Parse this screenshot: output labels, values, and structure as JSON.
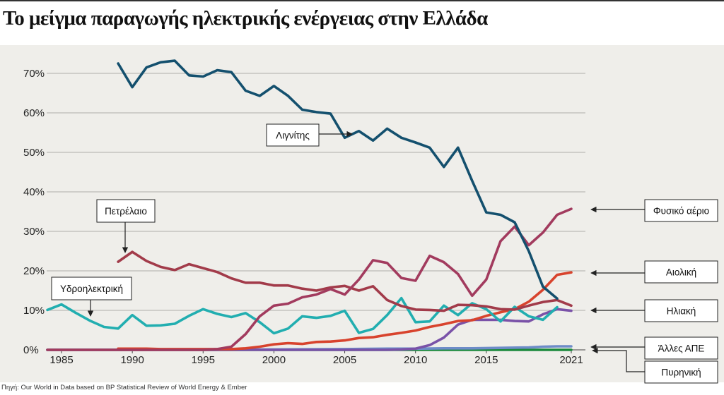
{
  "title": "Το μείγμα παραγωγής ηλεκτρικής ενέργειας στην Ελλάδα",
  "source": "Πηγή: Our World in Data based on BP Statistical Review of World Energy & Ember",
  "chart_data": {
    "type": "line",
    "title": "Το μείγμα παραγωγής ηλεκτρικής ενέργειας στην Ελλάδα",
    "xlabel": "",
    "ylabel": "",
    "xlim": [
      1984,
      2022
    ],
    "ylim": [
      0,
      70
    ],
    "grid": true,
    "x_ticks": [
      1985,
      1990,
      1995,
      2000,
      2005,
      2010,
      2015,
      2021
    ],
    "y_ticks": [
      0,
      10,
      20,
      30,
      40,
      50,
      60,
      70
    ],
    "y_tick_labels": [
      "0%",
      "10%",
      "20%",
      "30%",
      "40%",
      "50%",
      "60%",
      "70%"
    ],
    "series": [
      {
        "name": "Λιγνίτης",
        "color": "#14506e",
        "x": [
          1989,
          1990,
          1991,
          1992,
          1993,
          1994,
          1995,
          1996,
          1997,
          1998,
          1999,
          2000,
          2001,
          2002,
          2003,
          2004,
          2005,
          2006,
          2007,
          2008,
          2009,
          2010,
          2011,
          2012,
          2013,
          2014,
          2015,
          2016,
          2017,
          2018,
          2019,
          2020,
          2021
        ],
        "y": [
          72.5,
          66.5,
          71.5,
          72.8,
          73.2,
          69.5,
          69.2,
          70.8,
          70.3,
          65.6,
          64.3,
          66.8,
          64.3,
          60.8,
          60.2,
          59.8,
          53.7,
          55.4,
          53.0,
          56.0,
          53.7,
          52.5,
          51.2,
          46.3,
          51.2,
          42.8,
          34.8,
          34.2,
          32.3,
          25.0,
          16.0,
          13.0,
          null
        ],
        "label_box": "Λιγνίτης"
      },
      {
        "name": "Φυσικό αέριο",
        "color": "#a23b5e",
        "x": [
          1984,
          1985,
          1986,
          1987,
          1988,
          1989,
          1990,
          1991,
          1992,
          1993,
          1994,
          1995,
          1996,
          1997,
          1998,
          1999,
          2000,
          2001,
          2002,
          2003,
          2004,
          2005,
          2006,
          2007,
          2008,
          2009,
          2010,
          2011,
          2012,
          2013,
          2014,
          2015,
          2016,
          2017,
          2018,
          2019,
          2020,
          2021
        ],
        "y": [
          0,
          0,
          0,
          0,
          0,
          0,
          0,
          0,
          0,
          0,
          0,
          0,
          0.2,
          0.8,
          4.0,
          8.5,
          11.2,
          11.7,
          13.3,
          14.0,
          15.4,
          14.0,
          17.8,
          22.7,
          22.0,
          18.2,
          17.5,
          23.8,
          22.2,
          19.2,
          13.7,
          17.8,
          27.5,
          31.2,
          26.5,
          29.7,
          34.2,
          35.7
        ]
      },
      {
        "name": "Πετρέλαιο",
        "color": "#a23b4a",
        "x": [
          1989,
          1990,
          1991,
          1992,
          1993,
          1994,
          1995,
          1996,
          1997,
          1998,
          1999,
          2000,
          2001,
          2002,
          2003,
          2004,
          2005,
          2006,
          2007,
          2008,
          2009,
          2010,
          2011,
          2012,
          2013,
          2014,
          2015,
          2016,
          2017,
          2018,
          2019,
          2020,
          2021
        ],
        "y": [
          22.3,
          24.8,
          22.5,
          21.0,
          20.2,
          21.7,
          20.7,
          19.7,
          18.1,
          17.0,
          17.0,
          16.3,
          16.3,
          15.5,
          15.0,
          15.8,
          16.2,
          15.0,
          16.1,
          12.6,
          11.1,
          10.2,
          10.1,
          9.9,
          11.4,
          11.3,
          11.0,
          10.3,
          10.2,
          11.2,
          12.1,
          12.6,
          11.2
        ]
      },
      {
        "name": "Υδροηλεκτρική",
        "color": "#22aeb0",
        "x": [
          1984,
          1985,
          1986,
          1987,
          1988,
          1989,
          1990,
          1991,
          1992,
          1993,
          1994,
          1995,
          1996,
          1997,
          1998,
          1999,
          2000,
          2001,
          2002,
          2003,
          2004,
          2005,
          2006,
          2007,
          2008,
          2009,
          2010,
          2011,
          2012,
          2013,
          2014,
          2015,
          2016,
          2017,
          2018,
          2019,
          2020,
          2021
        ],
        "y": [
          10.1,
          11.5,
          9.4,
          7.4,
          5.8,
          5.4,
          8.8,
          6.1,
          6.2,
          6.6,
          8.6,
          10.3,
          9.1,
          8.3,
          9.3,
          7.0,
          4.2,
          5.4,
          8.5,
          8.1,
          8.6,
          9.9,
          4.3,
          5.3,
          8.8,
          13.1,
          7.0,
          7.2,
          11.2,
          8.8,
          11.8,
          10.3,
          7.2,
          10.9,
          8.5,
          7.6,
          10.8,
          null
        ]
      },
      {
        "name": "Αιολική",
        "color": "#d8432d",
        "x": [
          1989,
          1990,
          1991,
          1992,
          1993,
          1994,
          1995,
          1996,
          1997,
          1998,
          1999,
          2000,
          2001,
          2002,
          2003,
          2004,
          2005,
          2006,
          2007,
          2008,
          2009,
          2010,
          2011,
          2012,
          2013,
          2014,
          2015,
          2016,
          2017,
          2018,
          2019,
          2020,
          2021
        ],
        "y": [
          0.3,
          0.3,
          0.3,
          0.2,
          0.2,
          0.2,
          0.2,
          0.2,
          0.2,
          0.4,
          0.8,
          1.4,
          1.7,
          1.5,
          2.0,
          2.1,
          2.4,
          3.0,
          3.2,
          3.8,
          4.3,
          4.9,
          5.8,
          6.5,
          7.3,
          7.5,
          8.6,
          9.5,
          10.3,
          12.2,
          15.2,
          19.0,
          19.6
        ]
      },
      {
        "name": "Ηλιακή",
        "color": "#7a52a8",
        "x": [
          1984,
          1985,
          1986,
          1987,
          1988,
          1989,
          1990,
          1991,
          1992,
          1993,
          1994,
          1995,
          1996,
          1997,
          1998,
          1999,
          2000,
          2001,
          2002,
          2003,
          2004,
          2005,
          2006,
          2007,
          2008,
          2009,
          2010,
          2011,
          2012,
          2013,
          2014,
          2015,
          2016,
          2017,
          2018,
          2019,
          2020,
          2021
        ],
        "y": [
          0,
          0,
          0,
          0,
          0,
          0,
          0,
          0,
          0,
          0,
          0,
          0,
          0,
          0,
          0,
          0,
          0,
          0,
          0,
          0,
          0,
          0,
          0,
          0,
          0,
          0.1,
          0.3,
          1.2,
          3.1,
          6.4,
          7.6,
          7.6,
          7.6,
          7.3,
          7.2,
          9.0,
          10.3,
          9.9
        ]
      },
      {
        "name": "Άλλες ΑΠΕ",
        "color": "#6e8cc8",
        "x": [
          1984,
          1990,
          1995,
          2000,
          2005,
          2008,
          2010,
          2012,
          2014,
          2016,
          2018,
          2019,
          2020,
          2021
        ],
        "y": [
          0,
          0,
          0,
          0.1,
          0.2,
          0.3,
          0.3,
          0.4,
          0.4,
          0.5,
          0.6,
          0.8,
          0.9,
          0.9
        ]
      },
      {
        "name": "Πυρηνική",
        "color": "#1c8a3c",
        "x": [
          1984,
          2021
        ],
        "y": [
          0,
          0
        ]
      }
    ],
    "annotations": [
      {
        "text": "Λιγνίτης",
        "target": [
          2004.7,
          60.8
        ]
      },
      {
        "text": "Πετρέλαιο",
        "target": [
          1989.2,
          24.8
        ]
      },
      {
        "text": "Υδροηλεκτρική",
        "target": [
          1987.0,
          8.8
        ]
      },
      {
        "text": "Φυσικό αέριο",
        "target": [
          2021.2,
          35.7
        ]
      },
      {
        "text": "Αιολική",
        "target": [
          2021.2,
          19.6
        ]
      },
      {
        "text": "Ηλιακή",
        "target": [
          2021.2,
          10.0
        ]
      },
      {
        "text": "Άλλες ΑΠΕ",
        "target": [
          2021.2,
          0.9
        ]
      },
      {
        "text": "Πυρηνική",
        "target": [
          2021.2,
          0.0
        ]
      }
    ]
  }
}
